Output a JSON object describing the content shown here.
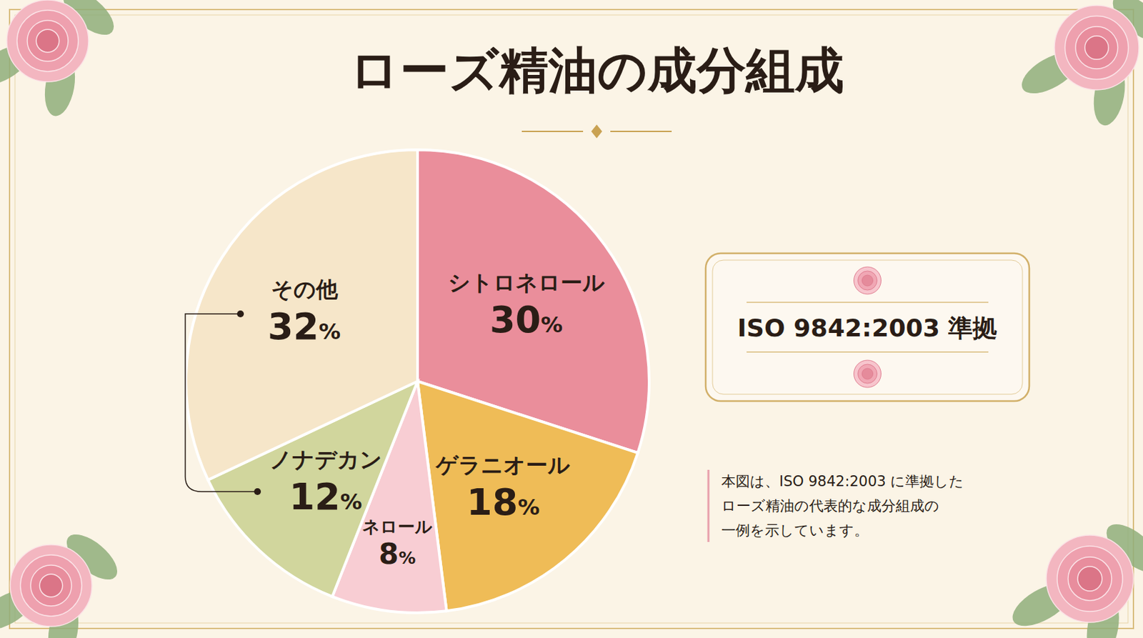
{
  "chart_data": {
    "type": "pie",
    "title": "ローズ精油の成分組成",
    "categories": [
      "シトロネロール",
      "ゲラニオール",
      "ネロール",
      "ノナデカン",
      "その他"
    ],
    "values": [
      30,
      18,
      8,
      12,
      32
    ],
    "value_labels": [
      "30%",
      "18%",
      "8%",
      "12%",
      "32%"
    ],
    "colors": [
      "#ea8e9b",
      "#efbc57",
      "#f8cdd3",
      "#d1d69d",
      "#f6e6c9"
    ],
    "data_labels": true,
    "annotations": [
      "ISO 9842:2003 準拠",
      "本図は、ISO 9842:2003 に準拠した",
      "ローズ精油の代表的な成分組成の",
      "一例を示しています。"
    ]
  }
}
